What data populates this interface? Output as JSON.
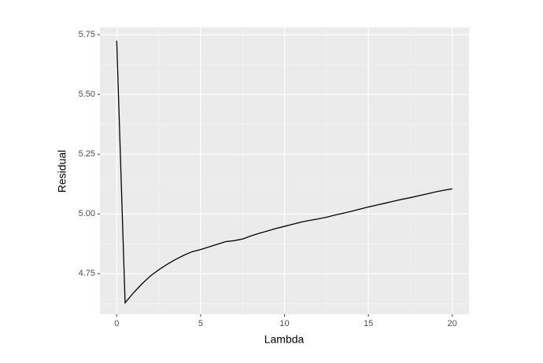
{
  "chart_data": {
    "type": "line",
    "x_label": "Lambda",
    "y_label": "Residual",
    "x": [
      0,
      0.5,
      1,
      1.5,
      2,
      2.5,
      3,
      3.5,
      4,
      4.5,
      5,
      5.5,
      6,
      6.5,
      7,
      7.5,
      8,
      8.5,
      9,
      9.5,
      10,
      10.5,
      11,
      11.5,
      12,
      12.5,
      13,
      13.5,
      14,
      14.5,
      15,
      15.5,
      16,
      16.5,
      17,
      17.5,
      18,
      18.5,
      19,
      19.5,
      20
    ],
    "values": [
      5.725,
      4.628,
      4.67,
      4.707,
      4.74,
      4.766,
      4.789,
      4.809,
      4.827,
      4.842,
      4.851,
      4.862,
      4.873,
      4.884,
      4.888,
      4.895,
      4.908,
      4.919,
      4.929,
      4.939,
      4.948,
      4.957,
      4.966,
      4.973,
      4.979,
      4.986,
      4.995,
      5.003,
      5.011,
      5.02,
      5.029,
      5.037,
      5.045,
      5.053,
      5.061,
      5.068,
      5.076,
      5.084,
      5.092,
      5.099,
      5.105
    ],
    "color": "#000000",
    "xlim": [
      -1,
      21
    ],
    "ylim": [
      4.58,
      5.78
    ],
    "xticks": [
      0,
      5,
      10,
      15,
      20
    ],
    "yticks": [
      4.75,
      {
        "value": 5,
        "label": "5.00"
      },
      5.25,
      {
        "value": 5.5,
        "label": "5.50"
      },
      5.75
    ],
    "grid": true
  }
}
